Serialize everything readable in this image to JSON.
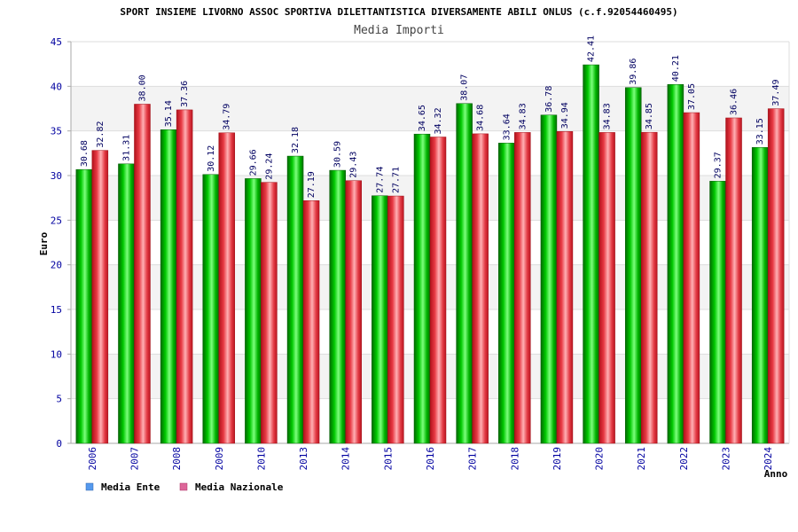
{
  "chart_data": {
    "type": "bar",
    "title": "SPORT INSIEME LIVORNO ASSOC SPORTIVA DILETTANTISTICA DIVERSAMENTE ABILI ONLUS (c.f.92054460495)",
    "subtitle": "Media Importi",
    "xlabel": "Anno",
    "ylabel": "Euro",
    "ylim": [
      0,
      45
    ],
    "yticks": [
      0,
      5,
      10,
      15,
      20,
      25,
      30,
      35,
      40,
      45
    ],
    "categories": [
      "2006",
      "2007",
      "2008",
      "2009",
      "2010",
      "2013",
      "2014",
      "2015",
      "2016",
      "2017",
      "2018",
      "2019",
      "2020",
      "2021",
      "2022",
      "2023",
      "2024"
    ],
    "series": [
      {
        "name": "Media Ente",
        "color": "#00b000",
        "legend_color": "#5599ee",
        "values": [
          30.68,
          31.31,
          35.14,
          30.12,
          29.66,
          32.18,
          30.59,
          27.74,
          34.65,
          38.07,
          33.64,
          36.78,
          42.41,
          39.86,
          40.21,
          29.37,
          33.15
        ],
        "labels": [
          "30.68",
          "31.31",
          "35.14",
          "30.12",
          "29.66",
          "32.18",
          "30.59",
          "27.74",
          "34.65",
          "38.07",
          "33.64",
          "36.78",
          "42.41",
          "39.86",
          "40.21",
          "29.37",
          "33.15"
        ]
      },
      {
        "name": "Media Nazionale",
        "color": "#e0303a",
        "legend_color": "#dd6699",
        "values": [
          32.82,
          38.0,
          37.36,
          34.79,
          29.24,
          27.19,
          29.43,
          27.71,
          34.32,
          34.68,
          34.83,
          34.94,
          34.83,
          34.85,
          37.05,
          36.46,
          37.49
        ],
        "labels": [
          "32.82",
          "38.00",
          "37.36",
          "34.79",
          "29.24",
          "27.19",
          "29.43",
          "27.71",
          "34.32",
          "34.68",
          "34.83",
          "34.94",
          "34.83",
          "34.85",
          "37.05",
          "36.46",
          "37.49"
        ]
      }
    ],
    "grid": true,
    "legend_position": "bottom-left"
  }
}
